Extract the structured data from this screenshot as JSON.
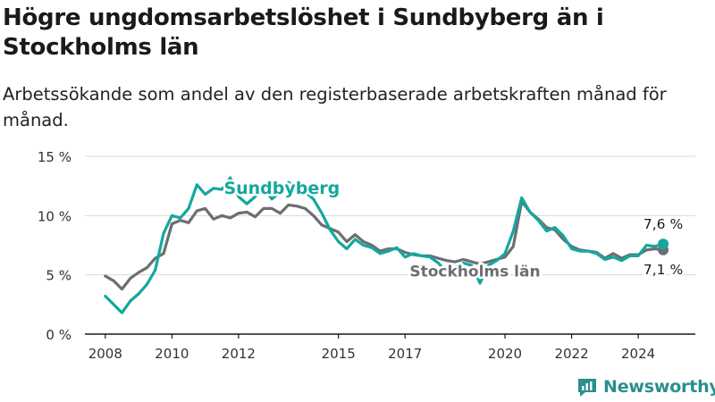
{
  "title": "Högre ungdomsarbetslöshet i Sundbyberg än i Stockholms län",
  "subtitle": "Arbetssökande som andel av den registerbaserade arbetskraften månad för månad.",
  "brand": "Newsworthy",
  "colors": {
    "sundbyberg": "#13a89e",
    "stockholm": "#6d6d72",
    "grid": "#d9d9d9",
    "axis": "#1a1a1a",
    "brand": "#2a8f8d"
  },
  "chart_data": {
    "type": "line",
    "ylim": [
      0,
      15
    ],
    "y_ticks": [
      0,
      5,
      10,
      15
    ],
    "y_tick_labels": [
      "0 %",
      "5 %",
      "10 %",
      "15 %"
    ],
    "x_ticks": [
      2008,
      2010,
      2012,
      2015,
      2017,
      2020,
      2022,
      2024
    ],
    "x_tick_labels": [
      "2008",
      "2010",
      "2012",
      "2015",
      "2017",
      "2020",
      "2022",
      "2024"
    ],
    "grid": "horizontal",
    "legend": "inline labels",
    "series": [
      {
        "name": "Sundbyberg",
        "end_label": "7,6 %",
        "x": [
          2008.0,
          2008.25,
          2008.5,
          2008.75,
          2009.0,
          2009.25,
          2009.5,
          2009.75,
          2010.0,
          2010.25,
          2010.5,
          2010.75,
          2011.0,
          2011.25,
          2011.5,
          2011.75,
          2012.0,
          2012.25,
          2012.5,
          2012.75,
          2013.0,
          2013.25,
          2013.5,
          2013.75,
          2014.0,
          2014.25,
          2014.5,
          2014.75,
          2015.0,
          2015.25,
          2015.5,
          2015.75,
          2016.0,
          2016.25,
          2016.5,
          2016.75,
          2017.0,
          2017.25,
          2017.5,
          2017.75,
          2018.0,
          2018.25,
          2018.5,
          2018.75,
          2019.0,
          2019.25,
          2019.5,
          2019.75,
          2020.0,
          2020.25,
          2020.5,
          2020.75,
          2021.0,
          2021.25,
          2021.5,
          2021.75,
          2022.0,
          2022.25,
          2022.5,
          2022.75,
          2023.0,
          2023.25,
          2023.5,
          2023.75,
          2024.0,
          2024.25,
          2024.5,
          2024.75
        ],
        "values": [
          3.2,
          2.5,
          1.8,
          2.8,
          3.4,
          4.2,
          5.4,
          8.5,
          10.0,
          9.8,
          10.6,
          12.6,
          11.8,
          12.3,
          12.2,
          13.2,
          11.6,
          11.0,
          11.6,
          12.4,
          11.4,
          12.0,
          12.8,
          12.4,
          12.0,
          11.4,
          10.2,
          8.8,
          7.8,
          7.2,
          8.0,
          7.5,
          7.3,
          6.8,
          7.0,
          7.3,
          6.5,
          6.8,
          6.6,
          6.5,
          6.0,
          5.2,
          5.6,
          6.0,
          5.8,
          4.3,
          5.8,
          6.2,
          6.8,
          8.7,
          11.5,
          10.3,
          9.6,
          8.7,
          9.0,
          8.3,
          7.2,
          7.0,
          7.0,
          6.8,
          6.3,
          6.5,
          6.2,
          6.6,
          6.6,
          7.5,
          7.4,
          7.6
        ]
      },
      {
        "name": "Stockholms län",
        "end_label": "7,1 %",
        "x": [
          2008.0,
          2008.25,
          2008.5,
          2008.75,
          2009.0,
          2009.25,
          2009.5,
          2009.75,
          2010.0,
          2010.25,
          2010.5,
          2010.75,
          2011.0,
          2011.25,
          2011.5,
          2011.75,
          2012.0,
          2012.25,
          2012.5,
          2012.75,
          2013.0,
          2013.25,
          2013.5,
          2013.75,
          2014.0,
          2014.25,
          2014.5,
          2014.75,
          2015.0,
          2015.25,
          2015.5,
          2015.75,
          2016.0,
          2016.25,
          2016.5,
          2016.75,
          2017.0,
          2017.25,
          2017.5,
          2017.75,
          2018.0,
          2018.25,
          2018.5,
          2018.75,
          2019.0,
          2019.25,
          2019.5,
          2019.75,
          2020.0,
          2020.25,
          2020.5,
          2020.75,
          2021.0,
          2021.25,
          2021.5,
          2021.75,
          2022.0,
          2022.25,
          2022.5,
          2022.75,
          2023.0,
          2023.25,
          2023.5,
          2023.75,
          2024.0,
          2024.25,
          2024.5,
          2024.75
        ],
        "values": [
          4.9,
          4.5,
          3.8,
          4.7,
          5.2,
          5.6,
          6.4,
          6.8,
          9.3,
          9.6,
          9.4,
          10.4,
          10.6,
          9.7,
          10.0,
          9.8,
          10.2,
          10.3,
          9.9,
          10.6,
          10.6,
          10.2,
          10.9,
          10.8,
          10.6,
          10.0,
          9.2,
          8.9,
          8.6,
          7.8,
          8.4,
          7.8,
          7.5,
          7.0,
          7.2,
          7.2,
          6.9,
          6.7,
          6.6,
          6.6,
          6.4,
          6.2,
          6.1,
          6.3,
          6.1,
          5.9,
          6.1,
          6.3,
          6.5,
          7.4,
          11.2,
          10.3,
          9.7,
          9.0,
          8.8,
          8.0,
          7.4,
          7.1,
          7.0,
          6.9,
          6.4,
          6.8,
          6.4,
          6.7,
          6.7,
          7.1,
          7.2,
          7.1
        ]
      }
    ]
  }
}
